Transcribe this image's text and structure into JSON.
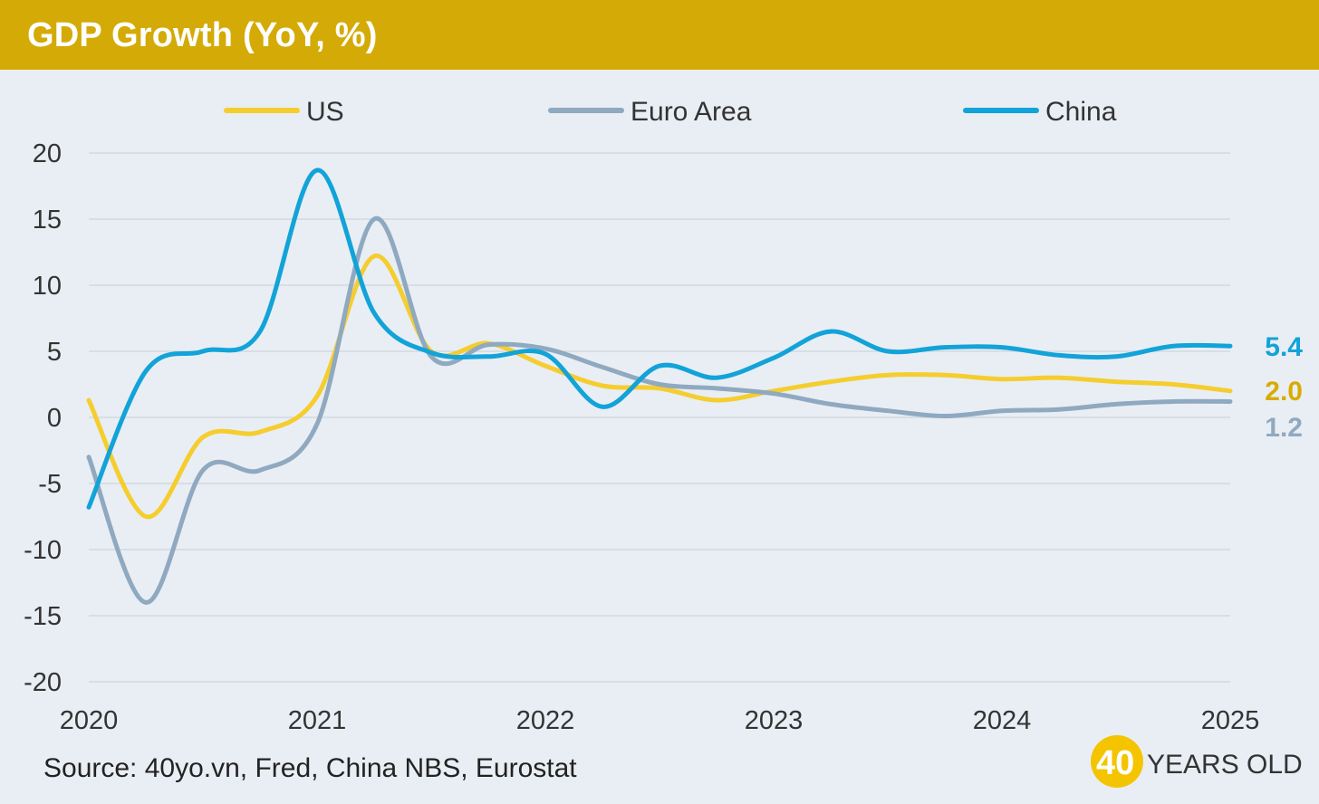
{
  "header": {
    "title": "GDP Growth (YoY, %)"
  },
  "footer": {
    "source": "Source: 40yo.vn, Fred, China NBS, Eurostat",
    "logo_number": "40",
    "logo_text": "YEARS OLD"
  },
  "colors": {
    "header_bg": "#d4aa06",
    "background": "#e9eef4",
    "grid": "#d3d9e0",
    "axis_text": "#333333"
  },
  "chart_data": {
    "type": "line",
    "title": "GDP Growth (YoY, %)",
    "xlabel": "",
    "ylabel": "",
    "xlim": [
      2020,
      2025
    ],
    "ylim": [
      -20,
      20
    ],
    "x_ticks": [
      "2020",
      "2021",
      "2022",
      "2023",
      "2024",
      "2025"
    ],
    "y_ticks": [
      "20",
      "15",
      "10",
      "5",
      "0",
      "-5",
      "-10",
      "-15",
      "-20"
    ],
    "grid": true,
    "legend_position": "top",
    "series": [
      {
        "name": "US",
        "color": "#f5cd2e",
        "label_color": "#d9ab00",
        "end_label": "2.0",
        "x": [
          2020.0,
          2020.25,
          2020.5,
          2020.75,
          2021.0,
          2021.25,
          2021.5,
          2021.75,
          2022.0,
          2022.25,
          2022.5,
          2022.75,
          2023.0,
          2023.25,
          2023.5,
          2023.75,
          2024.0,
          2024.25,
          2024.5,
          2024.75,
          2025.0
        ],
        "values": [
          1.3,
          -7.5,
          -1.5,
          -1.1,
          1.6,
          12.2,
          5.0,
          5.6,
          3.9,
          2.4,
          2.2,
          1.3,
          2.0,
          2.7,
          3.2,
          3.2,
          2.9,
          3.0,
          2.7,
          2.5,
          2.0
        ]
      },
      {
        "name": "Euro Area",
        "color": "#8fa9c0",
        "label_color": "#8fa9c0",
        "end_label": "1.2",
        "x": [
          2020.0,
          2020.25,
          2020.5,
          2020.75,
          2021.0,
          2021.25,
          2021.5,
          2021.75,
          2022.0,
          2022.25,
          2022.5,
          2022.75,
          2023.0,
          2023.25,
          2023.5,
          2023.75,
          2024.0,
          2024.25,
          2024.5,
          2024.75,
          2025.0
        ],
        "values": [
          -3.0,
          -14.0,
          -4.0,
          -4.0,
          -0.5,
          15.0,
          4.6,
          5.5,
          5.2,
          3.8,
          2.5,
          2.2,
          1.8,
          1.0,
          0.5,
          0.1,
          0.5,
          0.6,
          1.0,
          1.2,
          1.2
        ]
      },
      {
        "name": "China",
        "color": "#12a3d8",
        "label_color": "#12a3d8",
        "end_label": "5.4",
        "x": [
          2020.0,
          2020.25,
          2020.5,
          2020.75,
          2021.0,
          2021.25,
          2021.5,
          2021.75,
          2022.0,
          2022.25,
          2022.5,
          2022.75,
          2023.0,
          2023.25,
          2023.5,
          2023.75,
          2024.0,
          2024.25,
          2024.5,
          2024.75,
          2025.0
        ],
        "values": [
          -6.8,
          3.5,
          5.0,
          6.5,
          18.7,
          7.9,
          4.9,
          4.6,
          4.8,
          0.8,
          3.9,
          3.0,
          4.5,
          6.5,
          5.0,
          5.3,
          5.3,
          4.7,
          4.6,
          5.4,
          5.4
        ]
      }
    ]
  }
}
